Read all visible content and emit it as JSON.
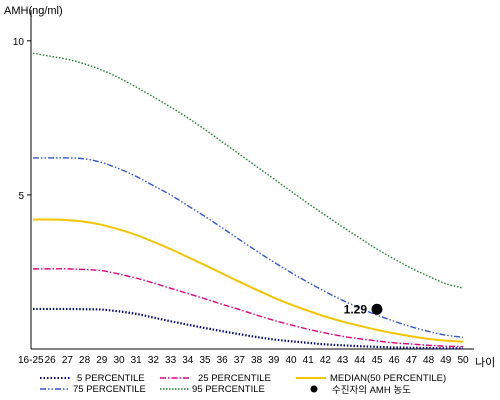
{
  "chart_data": {
    "type": "line",
    "ylabel": "AMH(ng/ml)",
    "xlabel": "나이",
    "y_ticks": [
      5,
      10
    ],
    "ylim": [
      0,
      11
    ],
    "x": [
      "16-25",
      "26",
      "27",
      "28",
      "29",
      "30",
      "31",
      "32",
      "33",
      "34",
      "35",
      "36",
      "37",
      "38",
      "39",
      "40",
      "41",
      "42",
      "43",
      "44",
      "45",
      "46",
      "47",
      "48",
      "49",
      "50"
    ],
    "grid": false,
    "legend_position": "bottom",
    "series": [
      {
        "name": "5 PERCENTILE",
        "color": "#000080",
        "dash": "dot",
        "values": [
          1.3,
          1.3,
          1.3,
          1.29,
          1.28,
          1.22,
          1.14,
          1.02,
          0.9,
          0.79,
          0.68,
          0.58,
          0.48,
          0.39,
          0.31,
          0.25,
          0.2,
          0.15,
          0.12,
          0.09,
          0.07,
          0.05,
          0.04,
          0.03,
          0.02,
          0.02
        ]
      },
      {
        "name": "25 PERCENTILE",
        "color": "#e0007f",
        "dash": "dashdot",
        "values": [
          2.6,
          2.6,
          2.6,
          2.58,
          2.54,
          2.43,
          2.3,
          2.14,
          1.97,
          1.8,
          1.63,
          1.45,
          1.28,
          1.1,
          0.93,
          0.78,
          0.64,
          0.52,
          0.41,
          0.33,
          0.26,
          0.2,
          0.16,
          0.12,
          0.09,
          0.08
        ]
      },
      {
        "name": "75 PERCENTILE",
        "color": "#3355cc",
        "dash": "dashdotdot",
        "values": [
          6.2,
          6.2,
          6.2,
          6.17,
          6.05,
          5.85,
          5.6,
          5.3,
          5.0,
          4.65,
          4.3,
          3.93,
          3.55,
          3.18,
          2.82,
          2.48,
          2.16,
          1.86,
          1.58,
          1.33,
          1.1,
          0.9,
          0.72,
          0.57,
          0.45,
          0.38
        ]
      },
      {
        "name": "95 PERCENTILE",
        "color": "#1a7a33",
        "dash": "dot",
        "values": [
          9.6,
          9.5,
          9.4,
          9.25,
          9.05,
          8.8,
          8.5,
          8.18,
          7.85,
          7.5,
          7.12,
          6.72,
          6.32,
          5.92,
          5.52,
          5.12,
          4.72,
          4.34,
          3.96,
          3.6,
          3.24,
          2.92,
          2.62,
          2.36,
          2.12,
          1.98
        ]
      },
      {
        "name": "MEDIAN(50 PERCENTILE)",
        "color": "#f5c400",
        "dash": "solid",
        "values": [
          4.2,
          4.2,
          4.18,
          4.13,
          4.03,
          3.88,
          3.7,
          3.48,
          3.24,
          2.98,
          2.72,
          2.45,
          2.18,
          1.92,
          1.67,
          1.44,
          1.24,
          1.05,
          0.89,
          0.75,
          0.62,
          0.51,
          0.41,
          0.33,
          0.27,
          0.24
        ]
      }
    ],
    "patient": {
      "legend": "수진자의 AMH 농도",
      "x": "45",
      "y": 1.29,
      "label": "1.29"
    }
  }
}
